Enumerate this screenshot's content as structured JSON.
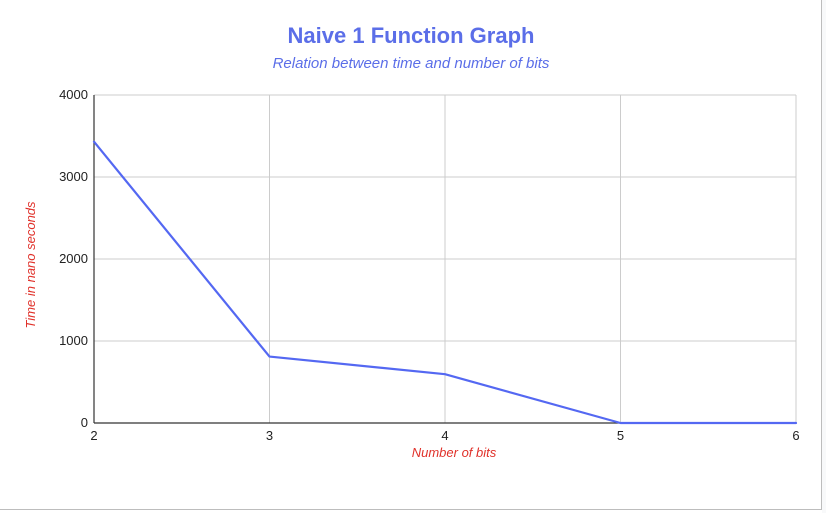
{
  "colors": {
    "title": "#5b6ee8",
    "axis_title": "#e0312a",
    "series_line": "#5468f2",
    "grid": "#cccccc",
    "axis": "#333333"
  },
  "chart_data": {
    "type": "line",
    "title": "Naive 1 Function Graph",
    "subtitle": "Relation between time and number of bits",
    "xlabel": "Number of bits",
    "ylabel": "Time in nano seconds",
    "x": [
      2,
      3,
      4,
      5,
      6
    ],
    "series": [
      {
        "values": [
          3430,
          810,
          595,
          0,
          0
        ]
      }
    ],
    "xlim": [
      2,
      6
    ],
    "ylim": [
      0,
      4000
    ],
    "x_ticks": [
      "2",
      "3",
      "4",
      "5",
      "6"
    ],
    "y_ticks": [
      "0",
      "1000",
      "2000",
      "3000",
      "4000"
    ],
    "grid": true,
    "legend": "none"
  }
}
